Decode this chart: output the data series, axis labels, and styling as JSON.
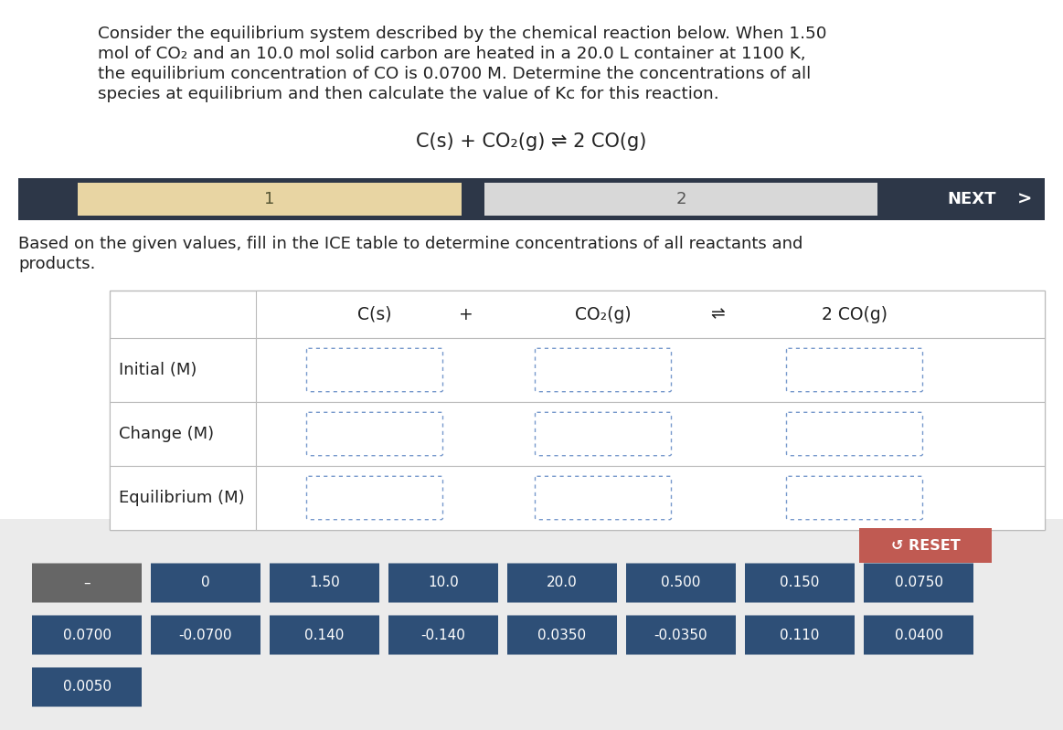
{
  "bg_color": "#ebebeb",
  "white_bg": "#ffffff",
  "paragraph_text_lines": [
    "Consider the equilibrium system described by the chemical reaction below. When 1.50",
    "mol of CO₂ and an 10.0 mol solid carbon are heated in a 20.0 L container at 1100 K,",
    "the equilibrium concentration of CO is 0.0700 M. Determine the concentrations of all",
    "species at equilibrium and then calculate the value of Kc for this reaction."
  ],
  "equation": "C(s) + CO₂(g) ⇌ 2 CO(g)",
  "nav_bg": "#2d3748",
  "nav_yellow_bg": "#e8d5a3",
  "nav_gray_bg": "#d8d8d8",
  "nav_label1": "1",
  "nav_label2": "2",
  "nav_next": "NEXT",
  "instruction_lines": [
    "Based on the given values, fill in the ICE table to determine concentrations of all reactants and",
    "products."
  ],
  "table_header": [
    "C(s)",
    "+",
    "CO₂(g)",
    "⇌",
    "2 CO(g)"
  ],
  "row_labels": [
    "Initial (M)",
    "Change (M)",
    "Equilibrium (M)"
  ],
  "button_color_dark": "#2e4f77",
  "button_color_gray": "#666666",
  "reset_color": "#c05a52",
  "buttons_row1": [
    "–",
    "0",
    "1.50",
    "10.0",
    "20.0",
    "0.500",
    "0.150",
    "0.0750"
  ],
  "buttons_row2": [
    "0.0700",
    "-0.0700",
    "0.140",
    "-0.140",
    "0.0350",
    "-0.0350",
    "0.110",
    "0.0400"
  ],
  "buttons_row3": [
    "0.0050"
  ]
}
